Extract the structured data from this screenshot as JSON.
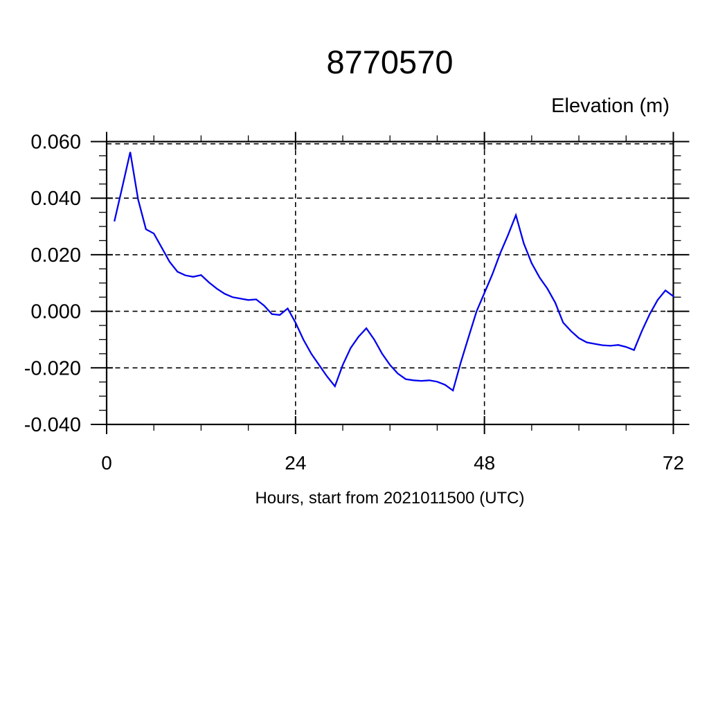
{
  "page": {
    "background": "#ffffff"
  },
  "chart_data": {
    "type": "line",
    "title": "8770570",
    "ylabel": "Elevation (m)",
    "xlabel": "Hours, start from 2021011500 (UTC)",
    "xlim": [
      0,
      72
    ],
    "ylim": [
      -0.04,
      0.06
    ],
    "grid": true,
    "legend_position": "none",
    "line_color": "#0000ee",
    "axis_color": "#000000",
    "x": [
      1,
      2,
      3,
      4,
      5,
      6,
      7,
      8,
      9,
      10,
      11,
      12,
      13,
      14,
      15,
      16,
      17,
      18,
      19,
      20,
      21,
      22,
      23,
      24,
      25,
      26,
      27,
      28,
      29,
      30,
      31,
      32,
      33,
      34,
      35,
      36,
      37,
      38,
      39,
      40,
      41,
      42,
      43,
      44,
      45,
      46,
      47,
      48,
      49,
      50,
      51,
      52,
      53,
      54,
      55,
      56,
      57,
      58,
      59,
      60,
      61,
      62,
      63,
      64,
      65,
      66,
      67,
      68,
      69,
      70,
      71,
      72
    ],
    "series": [
      {
        "name": "elevation",
        "color": "#0000ee",
        "values": [
          0.032,
          0.044,
          0.0563,
          0.0395,
          0.029,
          0.0275,
          0.0225,
          0.0175,
          0.014,
          0.0127,
          0.0122,
          0.0128,
          0.0102,
          0.008,
          0.0062,
          0.005,
          0.0045,
          0.004,
          0.0042,
          0.002,
          -0.001,
          -0.0013,
          0.001,
          -0.004,
          -0.01,
          -0.015,
          -0.019,
          -0.023,
          -0.0265,
          -0.019,
          -0.013,
          -0.009,
          -0.006,
          -0.01,
          -0.015,
          -0.019,
          -0.022,
          -0.024,
          -0.0244,
          -0.0246,
          -0.0244,
          -0.0249,
          -0.026,
          -0.028,
          -0.018,
          -0.009,
          0.0,
          0.0065,
          0.013,
          0.0205,
          0.027,
          0.034,
          0.024,
          0.017,
          0.012,
          0.008,
          0.003,
          -0.004,
          -0.007,
          -0.0095,
          -0.011,
          -0.0115,
          -0.012,
          -0.0122,
          -0.0119,
          -0.0126,
          -0.0137,
          -0.007,
          -0.001,
          0.004,
          0.0074,
          0.0053
        ]
      }
    ],
    "xticks": {
      "major": [
        0,
        24,
        48,
        72
      ],
      "minor": [
        6,
        12,
        18,
        30,
        36,
        42,
        54,
        60,
        66
      ],
      "grid": [
        24,
        48
      ]
    },
    "yticks": {
      "major": [
        0.06,
        0.04,
        0.02,
        0.0,
        -0.02,
        -0.04
      ],
      "minor": [
        0.055,
        0.05,
        0.045,
        0.035,
        0.03,
        0.025,
        0.015,
        0.01,
        0.005,
        -0.005,
        -0.01,
        -0.015,
        -0.025,
        -0.03,
        -0.035
      ],
      "grid": [
        0.04,
        0.02,
        0.0,
        -0.02
      ]
    },
    "xtick_labels": [
      "0",
      "24",
      "48",
      "72"
    ],
    "ytick_labels": [
      "0.060",
      "0.040",
      "0.020",
      "0.000",
      "-0.020",
      "-0.040"
    ]
  }
}
